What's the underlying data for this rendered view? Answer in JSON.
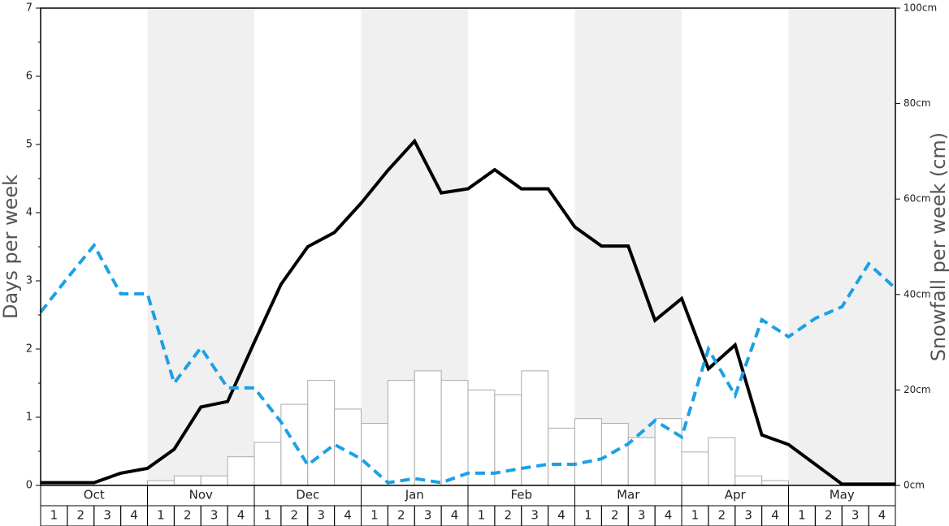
{
  "chart_data": {
    "type": "combo",
    "y_label": "Days per week",
    "y2_label": "Snowfall per week (cm)",
    "months": [
      "Oct",
      "Nov",
      "Dec",
      "Jan",
      "Feb",
      "Mar",
      "Apr",
      "May"
    ],
    "week_labels": [
      "1",
      "2",
      "3",
      "4"
    ],
    "ylim": [
      0,
      7
    ],
    "yticks": [
      0,
      1,
      2,
      3,
      4,
      5,
      6,
      7
    ],
    "y2lim": [
      0,
      100
    ],
    "y2ticks": [
      {
        "value": 0,
        "label": "0cm"
      },
      {
        "value": 20,
        "label": "20cm"
      },
      {
        "value": 40,
        "label": "40cm"
      },
      {
        "value": 60,
        "label": "60cm"
      },
      {
        "value": 80,
        "label": "80cm"
      },
      {
        "value": 100,
        "label": "100cm"
      }
    ],
    "band_color": "#f0f0f0",
    "series": [
      {
        "type": "bar",
        "axis": "y2",
        "color": "#ffffff",
        "edge_color": "#aaaaaa",
        "values": [
          0,
          0,
          0,
          0,
          1,
          2,
          2,
          6,
          9,
          17,
          22,
          16,
          13,
          22,
          24,
          22,
          20,
          19,
          24,
          12,
          14,
          13,
          10,
          14,
          7,
          10,
          2,
          1,
          0,
          0,
          0,
          0
        ]
      },
      {
        "type": "line",
        "color": "#000000",
        "dashed": false,
        "values": [
          0.04,
          0.04,
          0.04,
          0.18,
          0.25,
          0.53,
          1.15,
          1.23,
          2.1,
          2.95,
          3.5,
          3.71,
          4.14,
          4.62,
          5.05,
          4.29,
          4.35,
          4.63,
          4.35,
          4.35,
          3.79,
          3.51,
          3.51,
          2.42,
          2.74,
          1.71,
          2.06,
          0.74,
          0.6,
          0.31,
          0.02,
          0.02,
          0.02
        ]
      },
      {
        "type": "line",
        "color": "#1ca0e6",
        "dashed": true,
        "values": [
          2.54,
          3.04,
          3.52,
          2.81,
          2.81,
          1.5,
          2.02,
          1.43,
          1.43,
          0.93,
          0.3,
          0.6,
          0.39,
          0.04,
          0.1,
          0.04,
          0.18,
          0.18,
          0.25,
          0.31,
          0.31,
          0.39,
          0.61,
          0.95,
          0.71,
          2.0,
          1.32,
          2.43,
          2.18,
          2.45,
          2.62,
          3.25,
          2.89
        ]
      }
    ]
  }
}
